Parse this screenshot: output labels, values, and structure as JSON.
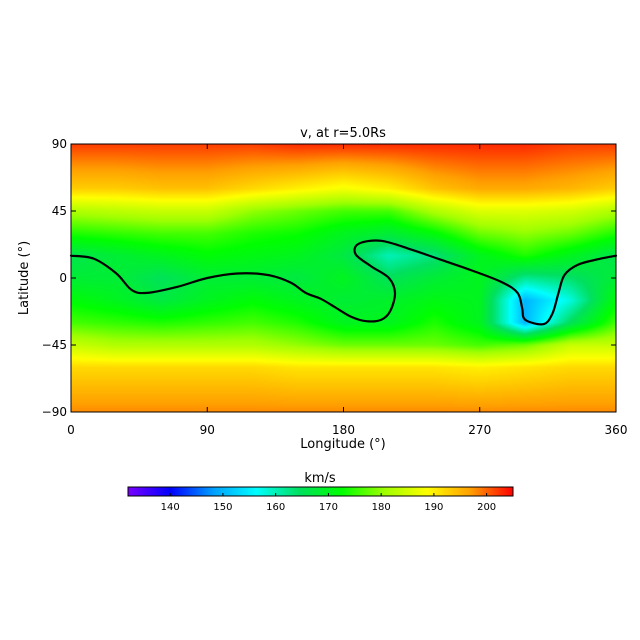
{
  "chart_data": {
    "type": "heatmap",
    "title": "v, at r=5.0Rs",
    "xlabel": "Longitude (°)",
    "ylabel": "Latitude (°)",
    "xlim": [
      0,
      360
    ],
    "ylim": [
      -90,
      90
    ],
    "x_ticks": [
      0,
      90,
      180,
      270,
      360
    ],
    "y_ticks": [
      -90,
      -45,
      0,
      45,
      90
    ],
    "colorbar": {
      "label": "km/s",
      "range": [
        132,
        205
      ],
      "ticks": [
        140,
        150,
        160,
        170,
        180,
        190,
        200
      ]
    },
    "colormap": [
      "#7a00ff",
      "#0000ff",
      "#00a0ff",
      "#00ffff",
      "#00e060",
      "#00ff00",
      "#a0ff00",
      "#ffff00",
      "#ffa000",
      "#ff0000"
    ],
    "neutral_line_color": "#000000",
    "neutral_line": {
      "lon": [
        0,
        15,
        30,
        40,
        50,
        70,
        90,
        110,
        130,
        145,
        155,
        165,
        175,
        185,
        195,
        205,
        211,
        214,
        210,
        198,
        188,
        190,
        205,
        225,
        245,
        265,
        285,
        295,
        298,
        300,
        312,
        318,
        322,
        326,
        335,
        350,
        360
      ],
      "lat": [
        15,
        13,
        3,
        -8,
        -10,
        -6,
        0,
        3,
        2,
        -3,
        -10,
        -14,
        -20,
        -26,
        -29,
        -28,
        -22,
        -10,
        0,
        8,
        16,
        23,
        25,
        19,
        12,
        5,
        -3,
        -10,
        -20,
        -28,
        -31,
        -24,
        -10,
        2,
        9,
        13,
        15
      ]
    },
    "speed_field": {
      "lon": [
        0,
        30,
        60,
        90,
        120,
        150,
        180,
        210,
        240,
        270,
        300,
        330,
        360
      ],
      "lat": [
        90,
        60,
        45,
        30,
        15,
        0,
        -15,
        -30,
        -45,
        -60,
        -90
      ],
      "values": [
        [
          202,
          202,
          202,
          202,
          202,
          203,
          203,
          203,
          203,
          203,
          203,
          202,
          202
        ],
        [
          193,
          193,
          194,
          194,
          192,
          190,
          188,
          190,
          194,
          196,
          196,
          195,
          193
        ],
        [
          182,
          183,
          184,
          184,
          180,
          178,
          176,
          176,
          182,
          186,
          186,
          185,
          182
        ],
        [
          174,
          175,
          176,
          176,
          174,
          173,
          170,
          168,
          172,
          178,
          180,
          178,
          174
        ],
        [
          166,
          168,
          170,
          172,
          171,
          170,
          167,
          160,
          163,
          170,
          174,
          170,
          166
        ],
        [
          168,
          168,
          165,
          168,
          168,
          167,
          170,
          165,
          168,
          170,
          162,
          164,
          168
        ],
        [
          172,
          170,
          167,
          170,
          172,
          170,
          168,
          169,
          171,
          170,
          150,
          158,
          172
        ],
        [
          176,
          175,
          174,
          175,
          176,
          174,
          170,
          170,
          174,
          170,
          150,
          165,
          176
        ],
        [
          184,
          182,
          182,
          182,
          182,
          180,
          178,
          178,
          178,
          176,
          178,
          184,
          184
        ],
        [
          192,
          192,
          192,
          192,
          192,
          191,
          191,
          191,
          191,
          190,
          191,
          192,
          192
        ],
        [
          198,
          198,
          198,
          198,
          198,
          198,
          198,
          198,
          198,
          198,
          198,
          198,
          198
        ]
      ]
    }
  }
}
